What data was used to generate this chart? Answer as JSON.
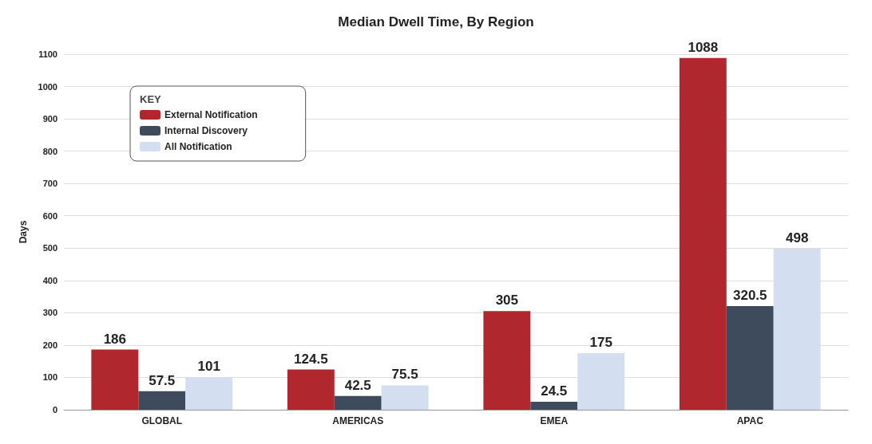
{
  "chart_data": {
    "type": "bar",
    "title": "Median Dwell Time, By Region",
    "ylabel": "Days",
    "legend_title": "KEY",
    "categories": [
      "GLOBAL",
      "AMERICAS",
      "EMEA",
      "APAC"
    ],
    "series": [
      {
        "name": "External Notification",
        "color": "#b0272d",
        "values": [
          186,
          124.5,
          305,
          1088
        ]
      },
      {
        "name": "Internal Discovery",
        "color": "#3d4b5c",
        "values": [
          57.5,
          42.5,
          24.5,
          320.5
        ]
      },
      {
        "name": "All Notification",
        "color": "#d3dff0",
        "values": [
          101,
          75.5,
          175,
          498
        ]
      }
    ],
    "ylim": [
      0,
      1100
    ],
    "yticks": [
      0,
      100,
      200,
      300,
      400,
      500,
      600,
      700,
      800,
      900,
      1000,
      1100
    ],
    "grid": "y",
    "legend": "top left",
    "data_labels": true
  }
}
